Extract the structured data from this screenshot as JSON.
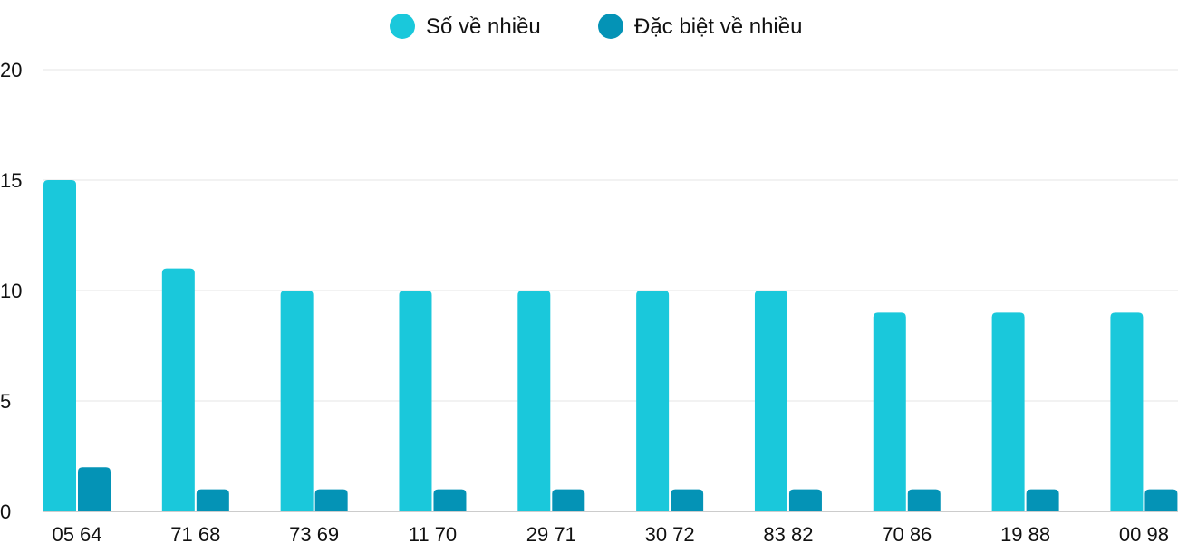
{
  "chart_data": {
    "type": "bar",
    "categories": [
      "05 64",
      "71 68",
      "73 69",
      "11 70",
      "29 71",
      "30 72",
      "83 82",
      "70 86",
      "19 88",
      "00 98"
    ],
    "series": [
      {
        "name": "Số về nhiều",
        "color": "#1AC8DB",
        "values": [
          15,
          11,
          10,
          10,
          10,
          10,
          10,
          9,
          9,
          9
        ]
      },
      {
        "name": "Đặc biệt về nhiều",
        "color": "#0493B6",
        "values": [
          2,
          1,
          1,
          1,
          1,
          1,
          1,
          1,
          1,
          1
        ]
      }
    ],
    "yticks": [
      0,
      5,
      10,
      15,
      20
    ],
    "ylim": [
      0,
      20
    ],
    "grid": true,
    "legend": "top-center"
  }
}
